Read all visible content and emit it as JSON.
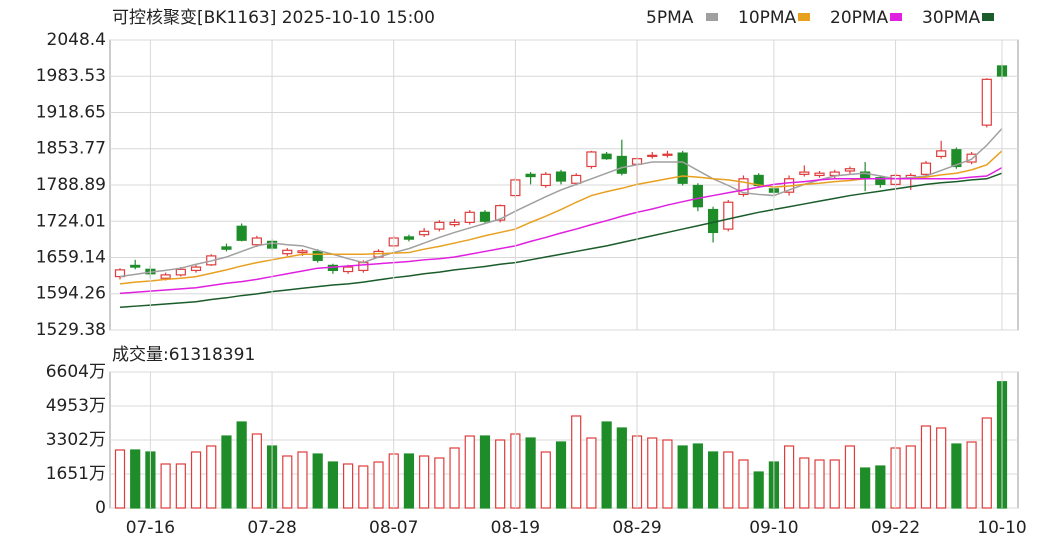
{
  "chart_data": [
    {
      "type": "candlestick",
      "title": "可控核聚变[BK1163] 2025-10-10 15:00",
      "up_color": "#e03c3c",
      "down_color": "#1e8c28",
      "open": [
        1625,
        1645,
        1638,
        1622,
        1628,
        1636,
        1646,
        1678,
        1715,
        1682,
        1688,
        1666,
        1668,
        1670,
        1645,
        1634,
        1636,
        1660,
        1680,
        1696,
        1700,
        1710,
        1718,
        1722,
        1740,
        1726,
        1770,
        1808,
        1788,
        1812,
        1792,
        1822,
        1844,
        1840,
        1826,
        1840,
        1842,
        1846,
        1788,
        1745,
        1710,
        1772,
        1806,
        1782,
        1776,
        1808,
        1806,
        1806,
        1814,
        1812,
        1802,
        1790,
        1800,
        1808,
        1840,
        1852,
        1830,
        1896,
        2002
      ],
      "high": [
        1640,
        1655,
        1645,
        1632,
        1642,
        1646,
        1665,
        1684,
        1720,
        1698,
        1692,
        1676,
        1674,
        1674,
        1648,
        1646,
        1654,
        1674,
        1698,
        1700,
        1712,
        1726,
        1728,
        1744,
        1744,
        1754,
        1802,
        1812,
        1812,
        1816,
        1810,
        1850,
        1848,
        1870,
        1840,
        1848,
        1850,
        1850,
        1792,
        1750,
        1762,
        1806,
        1810,
        1786,
        1806,
        1824,
        1814,
        1816,
        1822,
        1830,
        1806,
        1810,
        1810,
        1832,
        1868,
        1856,
        1848,
        1980,
        2006
      ],
      "low": [
        1620,
        1638,
        1622,
        1618,
        1625,
        1632,
        1644,
        1670,
        1688,
        1678,
        1672,
        1662,
        1662,
        1650,
        1630,
        1630,
        1632,
        1658,
        1678,
        1688,
        1696,
        1706,
        1714,
        1718,
        1720,
        1722,
        1766,
        1790,
        1784,
        1790,
        1788,
        1818,
        1834,
        1806,
        1790,
        1836,
        1838,
        1788,
        1742,
        1686,
        1706,
        1768,
        1784,
        1770,
        1770,
        1804,
        1802,
        1800,
        1808,
        1778,
        1784,
        1786,
        1780,
        1804,
        1836,
        1818,
        1826,
        1892,
        1978
      ],
      "close": [
        1637,
        1642,
        1630,
        1628,
        1638,
        1642,
        1662,
        1674,
        1690,
        1694,
        1676,
        1672,
        1671,
        1654,
        1636,
        1642,
        1650,
        1670,
        1694,
        1692,
        1706,
        1722,
        1722,
        1740,
        1724,
        1752,
        1798,
        1804,
        1808,
        1796,
        1806,
        1848,
        1836,
        1810,
        1836,
        1842,
        1844,
        1792,
        1750,
        1704,
        1758,
        1800,
        1788,
        1776,
        1800,
        1812,
        1810,
        1812,
        1818,
        1800,
        1790,
        1806,
        1806,
        1828,
        1850,
        1822,
        1844,
        1978,
        1984
      ],
      "series": [
        {
          "name": "5PMA",
          "color": "#a0a0a0",
          "values": [
            1625,
            1629,
            1633,
            1636,
            1640,
            1647,
            1653,
            1660,
            1670,
            1680,
            1685,
            1682,
            1680,
            1672,
            1665,
            1657,
            1650,
            1660,
            1668,
            1675,
            1685,
            1695,
            1704,
            1712,
            1720,
            1728,
            1742,
            1755,
            1768,
            1780,
            1790,
            1800,
            1810,
            1820,
            1825,
            1830,
            1830,
            1830,
            1815,
            1800,
            1788,
            1775,
            1772,
            1770,
            1780,
            1790,
            1798,
            1805,
            1808,
            1810,
            1805,
            1800,
            1802,
            1805,
            1815,
            1825,
            1835,
            1860,
            1890
          ]
        },
        {
          "name": "10PMA",
          "color": "#e8a020",
          "values": [
            1612,
            1615,
            1617,
            1620,
            1622,
            1625,
            1631,
            1637,
            1644,
            1650,
            1655,
            1660,
            1665,
            1665,
            1665,
            1665,
            1665,
            1666,
            1667,
            1668,
            1674,
            1679,
            1685,
            1691,
            1698,
            1704,
            1710,
            1722,
            1733,
            1745,
            1758,
            1770,
            1777,
            1783,
            1790,
            1795,
            1800,
            1805,
            1803,
            1800,
            1798,
            1794,
            1789,
            1785,
            1787,
            1790,
            1792,
            1795,
            1797,
            1800,
            1800,
            1800,
            1800,
            1803,
            1807,
            1810,
            1816,
            1825,
            1850
          ]
        },
        {
          "name": "20PMA",
          "color": "#e020e0",
          "values": [
            1595,
            1597,
            1599,
            1601,
            1603,
            1605,
            1609,
            1613,
            1616,
            1620,
            1625,
            1630,
            1635,
            1640,
            1642,
            1644,
            1646,
            1648,
            1650,
            1652,
            1655,
            1657,
            1660,
            1665,
            1670,
            1675,
            1680,
            1688,
            1695,
            1703,
            1710,
            1718,
            1725,
            1733,
            1740,
            1746,
            1753,
            1759,
            1765,
            1770,
            1775,
            1780,
            1785,
            1790,
            1793,
            1795,
            1798,
            1800,
            1800,
            1800,
            1800,
            1800,
            1800,
            1800,
            1800,
            1800,
            1803,
            1805,
            1820
          ]
        },
        {
          "name": "30PMA",
          "color": "#1a5c2a",
          "values": [
            1570,
            1572,
            1574,
            1576,
            1578,
            1580,
            1584,
            1587,
            1591,
            1594,
            1598,
            1601,
            1604,
            1607,
            1610,
            1612,
            1615,
            1619,
            1623,
            1626,
            1630,
            1633,
            1637,
            1640,
            1643,
            1647,
            1650,
            1655,
            1660,
            1665,
            1670,
            1675,
            1680,
            1686,
            1692,
            1698,
            1704,
            1710,
            1716,
            1722,
            1728,
            1734,
            1740,
            1745,
            1750,
            1755,
            1760,
            1765,
            1770,
            1774,
            1778,
            1782,
            1786,
            1790,
            1793,
            1795,
            1798,
            1800,
            1810
          ]
        }
      ],
      "ylim": [
        1529.38,
        2048.4
      ],
      "yticks": [
        2048.4,
        1983.53,
        1918.65,
        1853.77,
        1788.89,
        1724.01,
        1659.14,
        1594.26,
        1529.38
      ]
    },
    {
      "type": "bar",
      "title": "成交量:61318391",
      "categories": [
        null,
        null,
        "07-16",
        null,
        null,
        null,
        null,
        null,
        null,
        null,
        "07-28",
        null,
        null,
        null,
        null,
        null,
        null,
        null,
        "08-07",
        null,
        null,
        null,
        null,
        null,
        null,
        null,
        "08-19",
        null,
        null,
        null,
        null,
        null,
        null,
        null,
        "08-29",
        null,
        null,
        null,
        null,
        null,
        null,
        null,
        null,
        "09-10",
        null,
        null,
        null,
        null,
        null,
        null,
        null,
        "09-22",
        null,
        null,
        null,
        null,
        null,
        null,
        "10-10"
      ],
      "values": [
        2817,
        2817,
        2720,
        2137,
        2137,
        2720,
        3011,
        3496,
        4176,
        3594,
        3011,
        2525,
        2720,
        2622,
        2234,
        2137,
        2040,
        2234,
        2622,
        2622,
        2525,
        2428,
        2914,
        3496,
        3496,
        3302,
        3594,
        3399,
        2720,
        3205,
        4468,
        3399,
        4176,
        3885,
        3496,
        3399,
        3302,
        3011,
        3108,
        2720,
        2720,
        2331,
        1748,
        2234,
        3011,
        2428,
        2331,
        2331,
        3011,
        1942,
        2040,
        2914,
        3011,
        3982,
        3885,
        3108,
        3205,
        4370,
        6132
      ],
      "ylim": [
        0,
        6604
      ],
      "yticks": [
        {
          "value": 6604,
          "label": "6604万"
        },
        {
          "value": 4953,
          "label": "4953万"
        },
        {
          "value": 3302,
          "label": "3302万"
        },
        {
          "value": 1651,
          "label": "1651万"
        },
        0
      ]
    }
  ]
}
